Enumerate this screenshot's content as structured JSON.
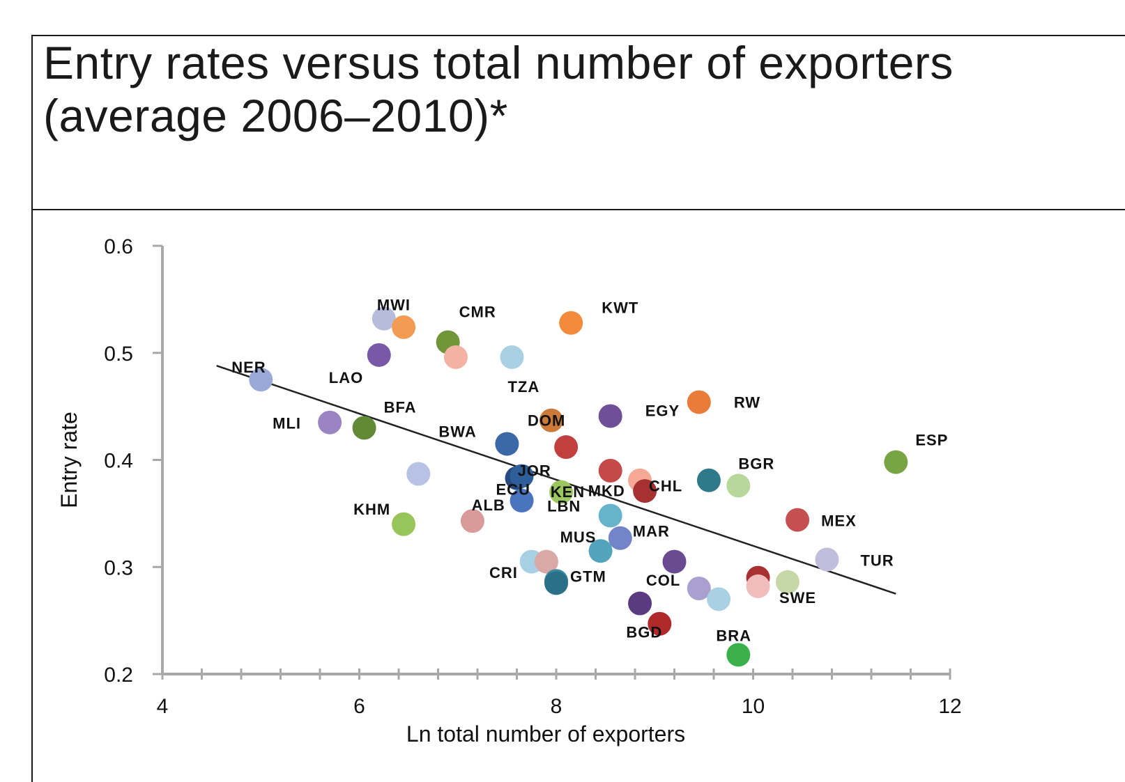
{
  "slide": {
    "title": "Entry rates versus total number of exporters (average 2006–2010)*"
  },
  "chart_data": {
    "type": "scatter",
    "title": "Entry rates versus total number of exporters (average 2006–2010)*",
    "xlabel": "Ln total number of exporters",
    "ylabel": "Entry rate",
    "xlim": [
      4,
      12
    ],
    "ylim": [
      0.2,
      0.6
    ],
    "xticks": [
      4,
      6,
      8,
      10,
      12
    ],
    "yticks": [
      0.2,
      0.3,
      0.4,
      0.5,
      0.6
    ],
    "xtick_labels": [
      "4",
      "6",
      "8",
      "10",
      "12"
    ],
    "ytick_labels": [
      "0.2",
      "0.3",
      "0.4",
      "0.5",
      "0.6"
    ],
    "grid": false,
    "trendline": {
      "x": [
        4.55,
        11.45
      ],
      "y": [
        0.488,
        0.275
      ]
    },
    "points": [
      {
        "label": "NER",
        "x": 5.0,
        "y": 0.475,
        "color": "#9aaad8"
      },
      {
        "label": "MWI",
        "x": 6.25,
        "y": 0.532,
        "color": "#b8bcdc"
      },
      {
        "label": "",
        "x": 6.45,
        "y": 0.524,
        "color": "#f39a53"
      },
      {
        "label": "LAO",
        "x": 6.2,
        "y": 0.498,
        "color": "#7a58a8"
      },
      {
        "label": "CMR",
        "x": 6.9,
        "y": 0.51,
        "color": "#71963a"
      },
      {
        "label": "",
        "x": 6.98,
        "y": 0.496,
        "color": "#f4b3a2"
      },
      {
        "label": "TZA",
        "x": 7.55,
        "y": 0.496,
        "color": "#a9d0e3"
      },
      {
        "label": "KWT",
        "x": 8.15,
        "y": 0.528,
        "color": "#f38a3c"
      },
      {
        "label": "MLI",
        "x": 5.7,
        "y": 0.435,
        "color": "#9a84c2"
      },
      {
        "label": "BFA",
        "x": 6.05,
        "y": 0.43,
        "color": "#628a36"
      },
      {
        "label": "BWA",
        "x": 7.5,
        "y": 0.415,
        "color": "#3b68a6"
      },
      {
        "label": "DOM",
        "x": 7.95,
        "y": 0.437,
        "color": "#cc7a3a"
      },
      {
        "label": "",
        "x": 8.1,
        "y": 0.412,
        "color": "#c23f3f"
      },
      {
        "label": "EGY",
        "x": 8.55,
        "y": 0.441,
        "color": "#6f4f98"
      },
      {
        "label": "RW",
        "x": 9.45,
        "y": 0.454,
        "color": "#ea7c3a"
      },
      {
        "label": "ESP",
        "x": 11.45,
        "y": 0.398,
        "color": "#79a443"
      },
      {
        "label": "",
        "x": 6.6,
        "y": 0.387,
        "color": "#b8c2e5"
      },
      {
        "label": "ECU",
        "x": 7.6,
        "y": 0.383,
        "color": "#264a80"
      },
      {
        "label": "JOR",
        "x": 7.65,
        "y": 0.385,
        "color": "#2f5f9a"
      },
      {
        "label": "KEN",
        "x": 8.55,
        "y": 0.39,
        "color": "#c44a4a"
      },
      {
        "label": "",
        "x": 8.85,
        "y": 0.381,
        "color": "#f6a996"
      },
      {
        "label": "",
        "x": 8.9,
        "y": 0.371,
        "color": "#a63131"
      },
      {
        "label": "CHL",
        "x": 9.55,
        "y": 0.381,
        "color": "#2f7a8a"
      },
      {
        "label": "BGR",
        "x": 9.85,
        "y": 0.376,
        "color": "#b8d79a"
      },
      {
        "label": "LBN",
        "x": 8.05,
        "y": 0.37,
        "color": "#9cc660"
      },
      {
        "label": "MKD",
        "x": 8.55,
        "y": 0.348,
        "color": "#67b3cc"
      },
      {
        "label": "ALB",
        "x": 7.65,
        "y": 0.362,
        "color": "#4a74be"
      },
      {
        "label": "KHM",
        "x": 6.45,
        "y": 0.34,
        "color": "#98c55a"
      },
      {
        "label": "",
        "x": 7.15,
        "y": 0.343,
        "color": "#d99a9a"
      },
      {
        "label": "MEX",
        "x": 10.45,
        "y": 0.344,
        "color": "#c45050"
      },
      {
        "label": "MAR",
        "x": 8.65,
        "y": 0.327,
        "color": "#7385c8"
      },
      {
        "label": "MUS",
        "x": 8.45,
        "y": 0.315,
        "color": "#52a3bc"
      },
      {
        "label": "",
        "x": 7.75,
        "y": 0.305,
        "color": "#a8d0e4"
      },
      {
        "label": "",
        "x": 7.9,
        "y": 0.305,
        "color": "#dba8a8"
      },
      {
        "label": "",
        "x": 9.2,
        "y": 0.305,
        "color": "#6a4a90"
      },
      {
        "label": "TUR",
        "x": 10.75,
        "y": 0.307,
        "color": "#c0bedc"
      },
      {
        "label": "CRI",
        "x": 8.0,
        "y": 0.287,
        "color": "#3a8aa0"
      },
      {
        "label": "GTM",
        "x": 8.0,
        "y": 0.285,
        "color": "#2a7088"
      },
      {
        "label": "",
        "x": 10.05,
        "y": 0.29,
        "color": "#a83030"
      },
      {
        "label": "",
        "x": 10.05,
        "y": 0.282,
        "color": "#f0bcbc"
      },
      {
        "label": "SWE",
        "x": 10.35,
        "y": 0.286,
        "color": "#c6d8a8"
      },
      {
        "label": "COL",
        "x": 9.45,
        "y": 0.28,
        "color": "#a9a0d0"
      },
      {
        "label": "",
        "x": 9.65,
        "y": 0.27,
        "color": "#aad0e4"
      },
      {
        "label": "",
        "x": 8.85,
        "y": 0.266,
        "color": "#5a3a80"
      },
      {
        "label": "BGD",
        "x": 9.05,
        "y": 0.247,
        "color": "#b02a2a"
      },
      {
        "label": "BRA",
        "x": 9.85,
        "y": 0.218,
        "color": "#3ab04a"
      }
    ]
  }
}
